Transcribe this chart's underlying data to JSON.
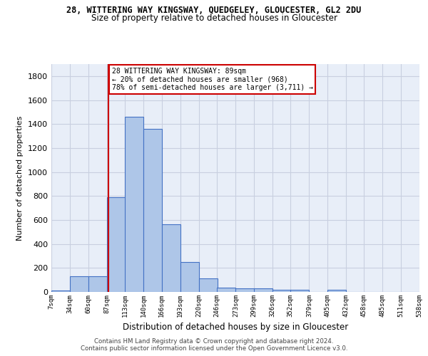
{
  "title1": "28, WITTERING WAY KINGSWAY, QUEDGELEY, GLOUCESTER, GL2 2DU",
  "title2": "Size of property relative to detached houses in Gloucester",
  "xlabel": "Distribution of detached houses by size in Gloucester",
  "ylabel": "Number of detached properties",
  "footer1": "Contains HM Land Registry data © Crown copyright and database right 2024.",
  "footer2": "Contains public sector information licensed under the Open Government Licence v3.0.",
  "bar_left_edges": [
    7,
    34,
    60,
    87,
    113,
    140,
    166,
    193,
    220,
    246,
    273,
    299,
    326,
    352,
    379,
    405,
    432,
    458,
    485,
    511
  ],
  "bar_heights": [
    10,
    130,
    130,
    790,
    1460,
    1360,
    565,
    250,
    110,
    35,
    30,
    30,
    20,
    20,
    0,
    20,
    0,
    0,
    0,
    0
  ],
  "bin_width": 27,
  "bar_color": "#aec6e8",
  "bar_edge_color": "#4472c4",
  "bar_linewidth": 0.8,
  "grid_color": "#c8cfe0",
  "background_color": "#e8eef8",
  "property_sqm": 89,
  "red_line_color": "#cc0000",
  "annotation_line1": "28 WITTERING WAY KINGSWAY: 89sqm",
  "annotation_line2": "← 20% of detached houses are smaller (968)",
  "annotation_line3": "78% of semi-detached houses are larger (3,711) →",
  "annotation_box_color": "#ffffff",
  "annotation_box_edge": "#cc0000",
  "ylim": [
    0,
    1900
  ],
  "yticks": [
    0,
    200,
    400,
    600,
    800,
    1000,
    1200,
    1400,
    1600,
    1800
  ],
  "tick_labels": [
    "7sqm",
    "34sqm",
    "60sqm",
    "87sqm",
    "113sqm",
    "140sqm",
    "166sqm",
    "193sqm",
    "220sqm",
    "246sqm",
    "273sqm",
    "299sqm",
    "326sqm",
    "352sqm",
    "379sqm",
    "405sqm",
    "432sqm",
    "458sqm",
    "485sqm",
    "511sqm",
    "538sqm"
  ]
}
